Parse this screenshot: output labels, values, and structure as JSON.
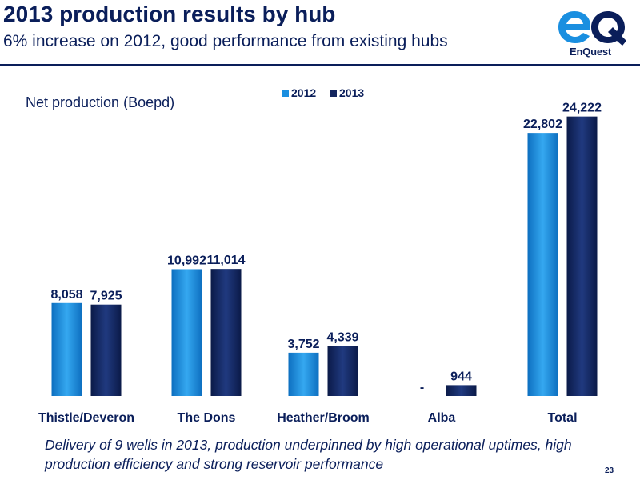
{
  "header": {
    "title": "2013 production results by hub",
    "subtitle": "6% increase on 2012, good performance from existing hubs",
    "logo_text": "EnQuest"
  },
  "chart_data": {
    "type": "bar",
    "title": "",
    "ylabel": "Net production (Boepd)",
    "xlabel": "",
    "categories": [
      "Thistle/Deveron",
      "The Dons",
      "Heather/Broom",
      "Alba",
      "Total"
    ],
    "series": [
      {
        "name": "2012",
        "values": [
          8058,
          10992,
          3752,
          0,
          22802
        ],
        "labels": [
          "8,058",
          "10,992",
          "3,752",
          "-",
          "22,802"
        ],
        "color": "#1a8fe0"
      },
      {
        "name": "2013",
        "values": [
          7925,
          11014,
          4339,
          944,
          24222
        ],
        "labels": [
          "7,925",
          "11,014",
          "4,339",
          "944",
          "24,222"
        ],
        "color": "#13255e"
      }
    ],
    "ylim": [
      0,
      26000
    ],
    "grid": false,
    "legend": "top-center"
  },
  "footnote": "Delivery of 9 wells in 2013, production underpinned by high operational uptimes, high production efficiency and strong reservoir performance",
  "page_number": "23",
  "colors": {
    "title": "#0a1e5a",
    "logo_blue": "#1a8fe0",
    "logo_navy": "#0a1e5a"
  }
}
